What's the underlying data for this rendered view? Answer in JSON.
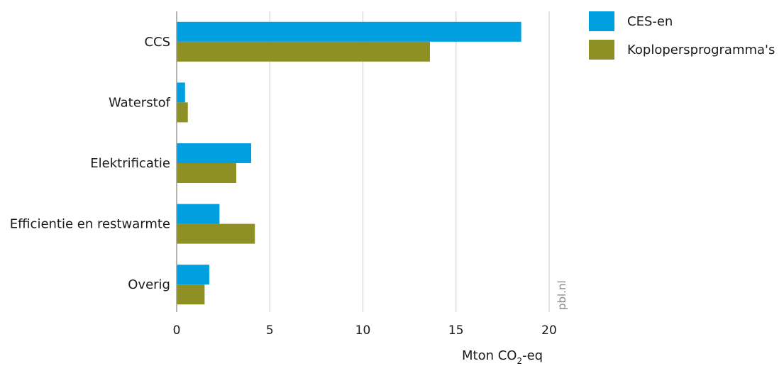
{
  "chart_data": {
    "type": "bar",
    "orientation": "horizontal",
    "categories": [
      "CCS",
      "Waterstof",
      "Elektrificatie",
      "Efficientie en restwarmte",
      "Overig"
    ],
    "series": [
      {
        "name": "CES-en",
        "values": [
          18.5,
          0.45,
          4.0,
          2.3,
          1.75
        ],
        "color": "#009fdf"
      },
      {
        "name": "Koplopersprogramma's",
        "values": [
          13.6,
          0.6,
          3.2,
          4.2,
          1.5
        ],
        "color": "#8e9025"
      }
    ],
    "xlim": [
      0,
      20
    ],
    "xticks": [
      0,
      5,
      10,
      15,
      20
    ],
    "xlabel_main": "Mton CO",
    "xlabel_sub": "2",
    "xlabel_suffix": "-eq",
    "grid": true,
    "legend_position": "top-right",
    "source": "pbl.nl"
  }
}
